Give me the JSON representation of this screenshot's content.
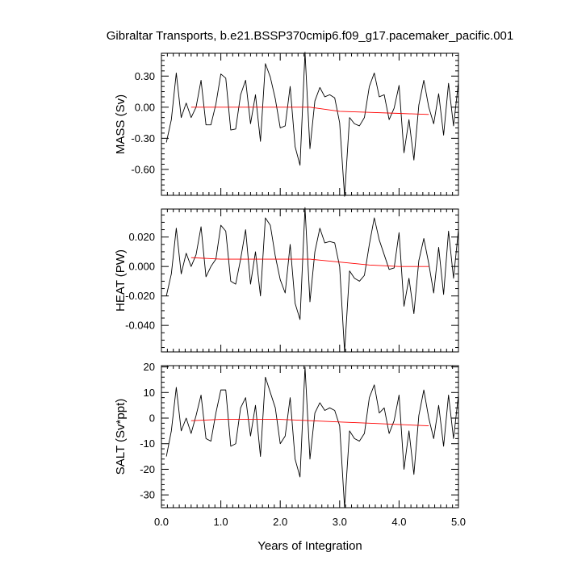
{
  "figure": {
    "title": "Gibraltar Transports, b.e21.BSSP370cmip6.f09_g17.pacemaker_pacific.001",
    "xlabel": "Years of Integration"
  },
  "chart_data": [
    {
      "type": "line",
      "ylabel": "MASS (Sv)",
      "xlim": [
        0,
        5.0
      ],
      "ylim": [
        -0.85,
        0.52
      ],
      "y_ticks": [
        0.3,
        0.0,
        -0.3,
        -0.6
      ],
      "y_tick_labels": [
        "0.30",
        "0.00",
        "-0.30",
        "-0.60"
      ],
      "y_minor_step": 0.05,
      "series": [
        {
          "color": "#000000",
          "x": [
            0.083,
            0.167,
            0.25,
            0.333,
            0.417,
            0.5,
            0.583,
            0.667,
            0.75,
            0.833,
            0.917,
            1.0,
            1.083,
            1.167,
            1.25,
            1.333,
            1.417,
            1.5,
            1.583,
            1.667,
            1.75,
            1.833,
            1.917,
            2.0,
            2.083,
            2.167,
            2.25,
            2.333,
            2.417,
            2.5,
            2.583,
            2.667,
            2.75,
            2.833,
            2.917,
            3.0,
            3.083,
            3.167,
            3.25,
            3.333,
            3.417,
            3.5,
            3.583,
            3.667,
            3.75,
            3.833,
            3.917,
            4.0,
            4.083,
            4.167,
            4.25,
            4.333,
            4.417,
            4.5,
            4.583,
            4.667,
            4.75,
            4.833,
            4.917,
            5.0
          ],
          "y": [
            -0.34,
            -0.12,
            0.33,
            -0.1,
            0.04,
            -0.1,
            0.0,
            0.26,
            -0.17,
            -0.17,
            0.03,
            0.32,
            0.28,
            -0.22,
            -0.21,
            0.12,
            0.26,
            -0.16,
            0.12,
            -0.33,
            0.42,
            0.29,
            0.08,
            -0.2,
            -0.18,
            0.2,
            -0.38,
            -0.56,
            0.53,
            -0.4,
            0.06,
            0.19,
            0.1,
            0.12,
            0.09,
            -0.15,
            -0.86,
            -0.1,
            -0.16,
            -0.18,
            -0.1,
            0.2,
            0.33,
            0.1,
            0.12,
            -0.12,
            -0.01,
            0.21,
            -0.44,
            -0.12,
            -0.51,
            0.02,
            0.26,
            0.0,
            -0.16,
            0.13,
            -0.27,
            0.23,
            -0.18,
            0.24
          ]
        },
        {
          "color": "#ff0000",
          "x": [
            0.5,
            1.0,
            1.5,
            2.0,
            2.5,
            3.0,
            3.5,
            4.0,
            4.5
          ],
          "y": [
            0.0,
            0.0,
            0.0,
            0.0,
            0.0,
            -0.04,
            -0.05,
            -0.06,
            -0.07
          ]
        }
      ]
    },
    {
      "type": "line",
      "ylabel": "HEAT (PW)",
      "xlim": [
        0,
        5.0
      ],
      "ylim": [
        -0.058,
        0.039
      ],
      "y_ticks": [
        0.02,
        0.0,
        -0.02,
        -0.04
      ],
      "y_tick_labels": [
        "0.020",
        "0.000",
        "-0.020",
        "-0.040"
      ],
      "y_minor_step": 0.005,
      "series": [
        {
          "color": "#000000",
          "x": [
            0.083,
            0.167,
            0.25,
            0.333,
            0.417,
            0.5,
            0.583,
            0.667,
            0.75,
            0.833,
            0.917,
            1.0,
            1.083,
            1.167,
            1.25,
            1.333,
            1.417,
            1.5,
            1.583,
            1.667,
            1.75,
            1.833,
            1.917,
            2.0,
            2.083,
            2.167,
            2.25,
            2.333,
            2.417,
            2.5,
            2.583,
            2.667,
            2.75,
            2.833,
            2.917,
            3.0,
            3.083,
            3.167,
            3.25,
            3.333,
            3.417,
            3.5,
            3.583,
            3.667,
            3.75,
            3.833,
            3.917,
            4.0,
            4.083,
            4.167,
            4.25,
            4.333,
            4.417,
            4.5,
            4.583,
            4.667,
            4.75,
            4.833,
            4.917,
            5.0
          ],
          "y": [
            -0.02,
            -0.005,
            0.026,
            -0.005,
            0.009,
            0.0,
            0.008,
            0.027,
            -0.007,
            0.0,
            0.005,
            0.028,
            0.024,
            -0.01,
            -0.012,
            0.005,
            0.025,
            -0.012,
            0.01,
            -0.02,
            0.033,
            0.028,
            0.007,
            -0.009,
            -0.018,
            0.015,
            -0.025,
            -0.036,
            0.04,
            -0.024,
            0.01,
            0.026,
            0.016,
            0.017,
            0.016,
            0.0,
            -0.058,
            -0.003,
            -0.008,
            -0.01,
            -0.006,
            0.015,
            0.033,
            0.018,
            0.008,
            -0.002,
            -0.001,
            0.023,
            -0.027,
            -0.008,
            -0.032,
            0.004,
            0.019,
            0.002,
            -0.018,
            0.013,
            -0.019,
            0.024,
            -0.008,
            0.025
          ]
        },
        {
          "color": "#ff0000",
          "x": [
            0.5,
            1.0,
            1.5,
            2.0,
            2.5,
            3.0,
            3.5,
            4.0,
            4.5
          ],
          "y": [
            0.006,
            0.005,
            0.005,
            0.005,
            0.005,
            0.003,
            0.001,
            0.0,
            0.0
          ]
        }
      ]
    },
    {
      "type": "line",
      "ylabel": "SALT (Sv*ppt)",
      "xlim": [
        0,
        5.0
      ],
      "ylim": [
        -35,
        20.5
      ],
      "y_ticks": [
        20,
        10,
        0,
        -10,
        -20,
        -30
      ],
      "y_tick_labels": [
        "20",
        "10",
        "0",
        "-10",
        "-20",
        "-30"
      ],
      "y_minor_step": 2,
      "series": [
        {
          "color": "#000000",
          "x": [
            0.083,
            0.167,
            0.25,
            0.333,
            0.417,
            0.5,
            0.583,
            0.667,
            0.75,
            0.833,
            0.917,
            1.0,
            1.083,
            1.167,
            1.25,
            1.333,
            1.417,
            1.5,
            1.583,
            1.667,
            1.75,
            1.833,
            1.917,
            2.0,
            2.083,
            2.167,
            2.25,
            2.333,
            2.417,
            2.5,
            2.583,
            2.667,
            2.75,
            2.833,
            2.917,
            3.0,
            3.083,
            3.167,
            3.25,
            3.333,
            3.417,
            3.5,
            3.583,
            3.667,
            3.75,
            3.833,
            3.917,
            4.0,
            4.083,
            4.167,
            4.25,
            4.333,
            4.417,
            4.5,
            4.583,
            4.667,
            4.75,
            4.833,
            4.917,
            5.0
          ],
          "y": [
            -15,
            -5,
            12,
            -5,
            0,
            -6,
            1,
            9,
            -8,
            -9,
            2,
            11,
            11,
            -11,
            -10,
            4,
            8,
            -7,
            5,
            -15,
            16,
            10,
            4,
            -10,
            -7,
            8,
            -16,
            -23,
            20,
            -16,
            2,
            6,
            3,
            4,
            3,
            -3,
            -35,
            -5,
            -8,
            -9,
            -6,
            8,
            13,
            2,
            4,
            -6,
            -1,
            9,
            -20,
            -5,
            -22,
            1,
            11,
            0,
            -8,
            5,
            -11,
            9,
            -8,
            9
          ]
        },
        {
          "color": "#ff0000",
          "x": [
            0.5,
            1.0,
            1.5,
            2.0,
            2.5,
            3.0,
            3.5,
            4.0,
            4.5
          ],
          "y": [
            -1.0,
            -0.5,
            -0.5,
            -0.5,
            -1.0,
            -1.5,
            -2.0,
            -2.5,
            -3.0
          ]
        }
      ]
    }
  ],
  "x_axis": {
    "ticks": [
      0.0,
      1.0,
      2.0,
      3.0,
      4.0,
      5.0
    ],
    "tick_labels": [
      "0.0",
      "1.0",
      "2.0",
      "3.0",
      "4.0",
      "5.0"
    ],
    "minor_step": 0.1
  }
}
